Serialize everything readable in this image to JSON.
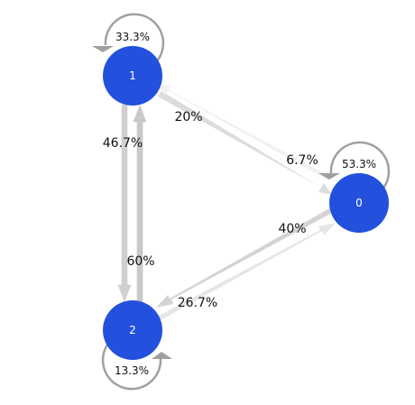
{
  "nodes": [
    {
      "id": "n1",
      "label": "1"
    },
    {
      "id": "n0",
      "label": "0"
    },
    {
      "id": "n2",
      "label": "2"
    }
  ],
  "self_loops": [
    {
      "node": "1",
      "label": "33.3%"
    },
    {
      "node": "0",
      "label": "53.3%"
    },
    {
      "node": "2",
      "label": "13.3%"
    }
  ],
  "edges": [
    {
      "from": "1",
      "to": "0",
      "label": "20%"
    },
    {
      "from": "0",
      "to": "1",
      "label": "6.7%"
    },
    {
      "from": "1",
      "to": "2",
      "label": "46.7%"
    },
    {
      "from": "2",
      "to": "1",
      "label": "60%"
    },
    {
      "from": "0",
      "to": "2",
      "label": "40%"
    },
    {
      "from": "2",
      "to": "0",
      "label": "26.7%"
    }
  ],
  "colors": {
    "node_fill": "#2350dc",
    "loop_stroke": "#a0a0a0",
    "text": "#111111"
  }
}
